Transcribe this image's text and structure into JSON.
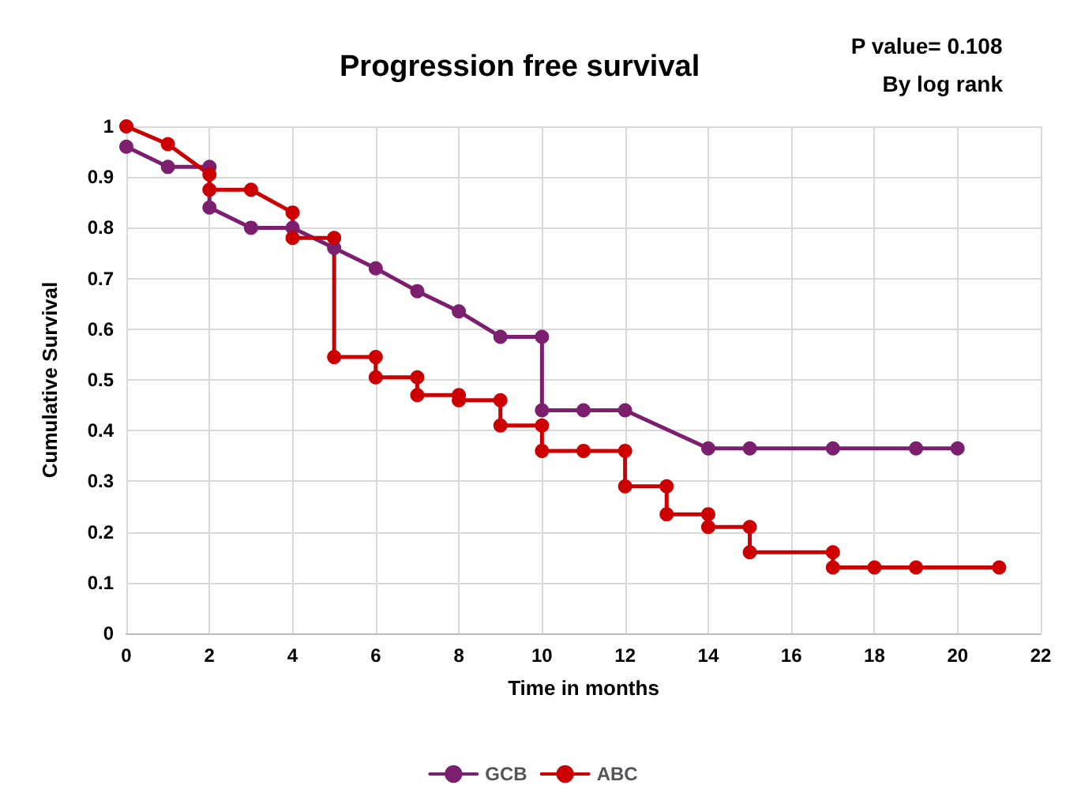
{
  "chart_data": {
    "type": "line",
    "title": "Progression free survival",
    "xlabel": "Time in months",
    "ylabel": "Cumulative Survival",
    "annotations": [
      "P value= 0.108",
      "By log rank"
    ],
    "xlim": [
      0,
      22
    ],
    "xticks": [
      0,
      2,
      4,
      6,
      8,
      10,
      12,
      14,
      16,
      18,
      20,
      22
    ],
    "ylim": [
      0,
      1
    ],
    "yticks": [
      0,
      0.1,
      0.2,
      0.3,
      0.4,
      0.5,
      0.6,
      0.7,
      0.8,
      0.9,
      1
    ],
    "grid": true,
    "legend": "bottom",
    "marker": "circle",
    "line_style": "solid",
    "series": [
      {
        "name": "GCB",
        "color": "#7b1f6e",
        "x": [
          0,
          1,
          2,
          2,
          3,
          4,
          5,
          6,
          7,
          8,
          9,
          10,
          10,
          11,
          12,
          14,
          15,
          17,
          19,
          20
        ],
        "values": [
          0.96,
          0.92,
          0.92,
          0.84,
          0.8,
          0.8,
          0.76,
          0.72,
          0.675,
          0.635,
          0.585,
          0.585,
          0.44,
          0.44,
          0.44,
          0.365,
          0.365,
          0.365,
          0.365,
          0.365
        ]
      },
      {
        "name": "ABC",
        "color": "#cc0000",
        "x": [
          0,
          1,
          2,
          2,
          3,
          4,
          4,
          5,
          5,
          6,
          6,
          7,
          7,
          8,
          8,
          9,
          9,
          10,
          10,
          11,
          12,
          12,
          13,
          13,
          14,
          14,
          15,
          15,
          17,
          17,
          18,
          19,
          21
        ],
        "values": [
          1,
          0.965,
          0.905,
          0.875,
          0.875,
          0.83,
          0.78,
          0.78,
          0.545,
          0.545,
          0.505,
          0.505,
          0.47,
          0.47,
          0.46,
          0.46,
          0.41,
          0.41,
          0.36,
          0.36,
          0.36,
          0.29,
          0.29,
          0.235,
          0.235,
          0.21,
          0.21,
          0.16,
          0.16,
          0.13,
          0.13,
          0.13,
          0.13
        ]
      }
    ]
  }
}
